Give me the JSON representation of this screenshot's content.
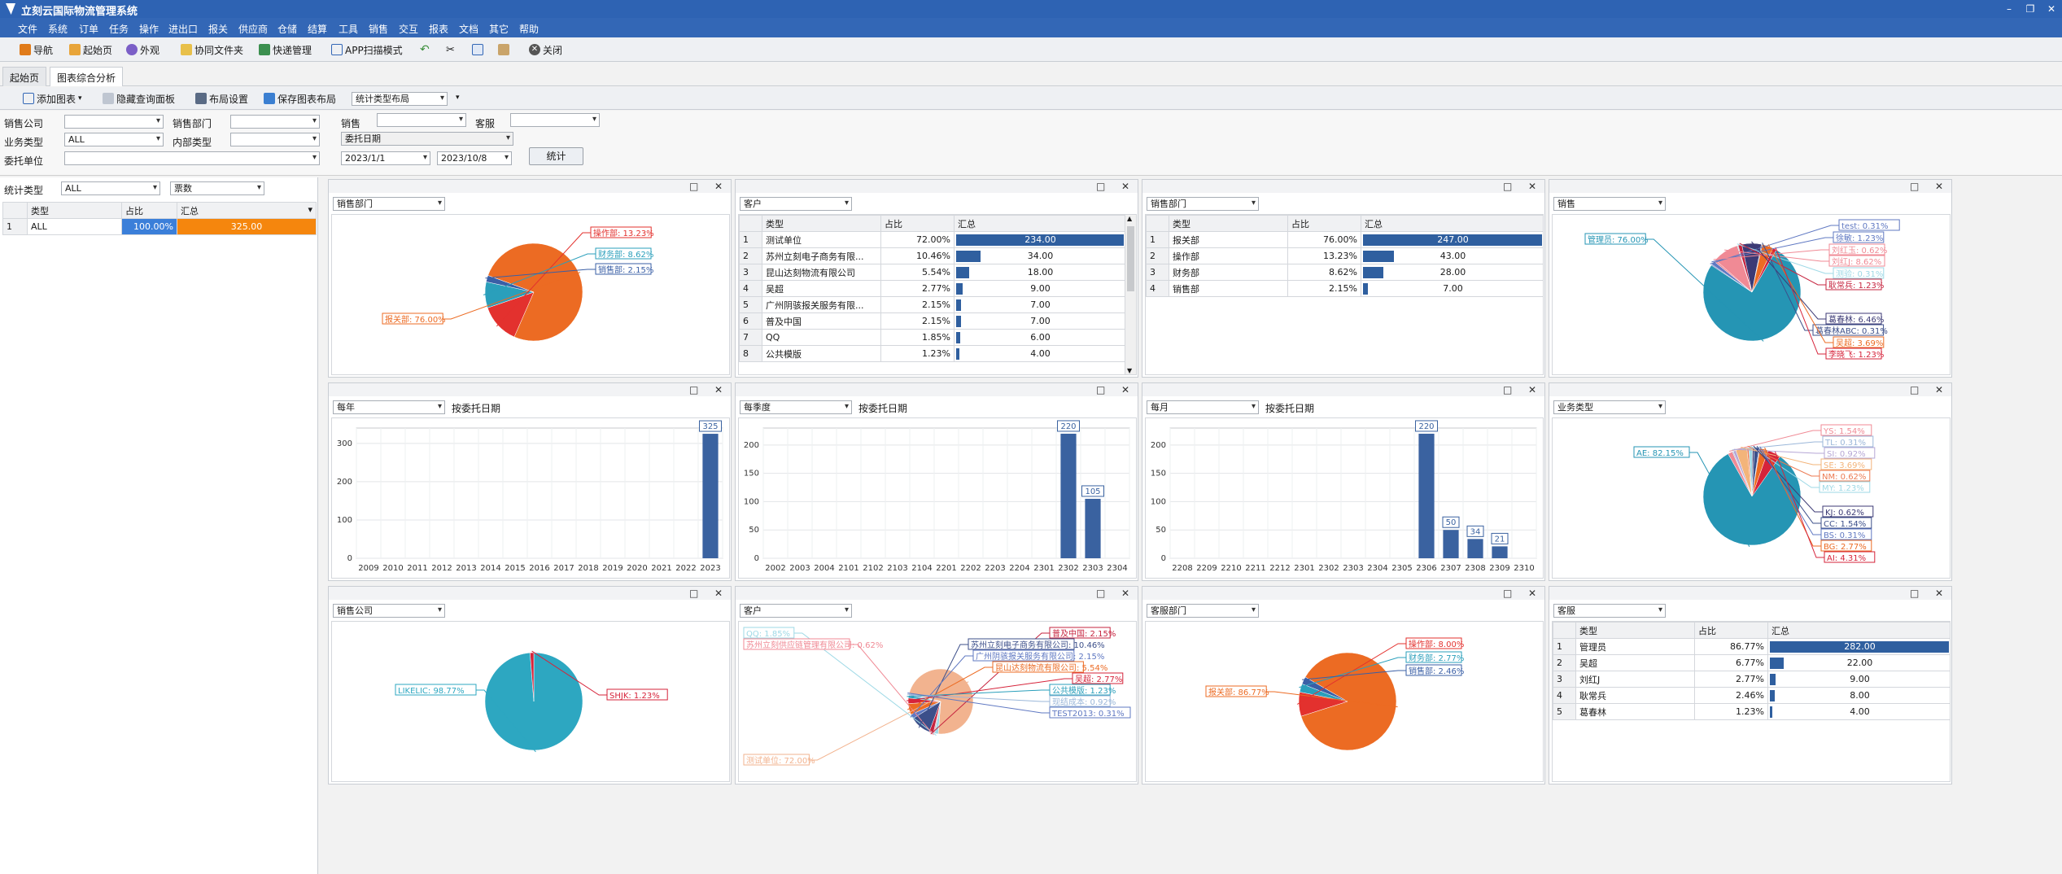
{
  "app": {
    "title": "立刻云国际物流管理系统"
  },
  "menu": [
    "文件",
    "系统",
    "订单",
    "任务",
    "操作",
    "进出口",
    "报关",
    "供应商",
    "仓储",
    "结算",
    "工具",
    "销售",
    "交互",
    "报表",
    "文档",
    "其它",
    "帮助"
  ],
  "toolbar": {
    "nav": "导航",
    "home": "起始页",
    "appearance": "外观",
    "folder": "协同文件夹",
    "express": "快递管理",
    "app_scan": "APP扫描模式",
    "close": "关闭"
  },
  "tabs": [
    "起始页",
    "图表综合分析"
  ],
  "subtoolbar": {
    "add_chart": "添加图表",
    "hide_query": "隐藏查询面板",
    "layout_settings": "布局设置",
    "save_layout": "保存图表布局",
    "layout_type": "统计类型布局"
  },
  "filters": {
    "sales_company_label": "销售公司",
    "sales_company": "",
    "sales_dept_label": "销售部门",
    "sales_dept": "",
    "sales_label": "销售",
    "sales": "",
    "customer_service_label": "客服",
    "customer_service": "",
    "business_type_label": "业务类型",
    "business_type": "ALL",
    "internal_type_label": "内部类型",
    "internal_type": "",
    "date_type": "委托日期",
    "client_unit_label": "委托单位",
    "client_unit": "",
    "date_from": "2023/1/1",
    "date_to": "2023/10/8",
    "stat_button": "统计"
  },
  "left": {
    "stat_type_label": "统计类型",
    "stat_type": "ALL",
    "measure": "票数",
    "columns": [
      "类型",
      "占比",
      "汇总"
    ],
    "rows": [
      {
        "n": "1",
        "type": "ALL",
        "pct": "100.00%",
        "sum": "325.00"
      }
    ]
  },
  "panels": {
    "p1": {
      "selector": "销售部门"
    },
    "p2": {
      "selector": "客户",
      "columns": [
        "类型",
        "占比",
        "汇总"
      ],
      "rows": [
        {
          "n": "1",
          "type": "测试单位",
          "pct": "72.00%",
          "sum": "234.00",
          "v": 234
        },
        {
          "n": "2",
          "type": "苏州立刻电子商务有限...",
          "pct": "10.46%",
          "sum": "34.00",
          "v": 34
        },
        {
          "n": "3",
          "type": "昆山达刻物流有限公司",
          "pct": "5.54%",
          "sum": "18.00",
          "v": 18
        },
        {
          "n": "4",
          "type": "吴超",
          "pct": "2.77%",
          "sum": "9.00",
          "v": 9
        },
        {
          "n": "5",
          "type": "广州阴骇报关服务有限...",
          "pct": "2.15%",
          "sum": "7.00",
          "v": 7
        },
        {
          "n": "6",
          "type": "普及中国",
          "pct": "2.15%",
          "sum": "7.00",
          "v": 7
        },
        {
          "n": "7",
          "type": "QQ",
          "pct": "1.85%",
          "sum": "6.00",
          "v": 6
        },
        {
          "n": "8",
          "type": "公共模版",
          "pct": "1.23%",
          "sum": "4.00",
          "v": 4
        }
      ]
    },
    "p3": {
      "selector": "销售部门",
      "columns": [
        "类型",
        "占比",
        "汇总"
      ],
      "rows": [
        {
          "n": "1",
          "type": "报关部",
          "pct": "76.00%",
          "sum": "247.00",
          "v": 247
        },
        {
          "n": "2",
          "type": "操作部",
          "pct": "13.23%",
          "sum": "43.00",
          "v": 43
        },
        {
          "n": "3",
          "type": "财务部",
          "pct": "8.62%",
          "sum": "28.00",
          "v": 28
        },
        {
          "n": "4",
          "type": "销售部",
          "pct": "2.15%",
          "sum": "7.00",
          "v": 7
        }
      ]
    },
    "p4": {
      "selector": "销售"
    },
    "p5": {
      "selector": "每年",
      "label": "按委托日期"
    },
    "p6": {
      "selector": "每季度",
      "label": "按委托日期"
    },
    "p7": {
      "selector": "每月",
      "label": "按委托日期"
    },
    "p8": {
      "selector": "业务类型"
    },
    "p9": {
      "selector": "销售公司"
    },
    "p10": {
      "selector": "客户"
    },
    "p11": {
      "selector": "客服部门"
    },
    "p12": {
      "selector": "客服",
      "columns": [
        "类型",
        "占比",
        "汇总"
      ],
      "rows": [
        {
          "n": "1",
          "type": "管理员",
          "pct": "86.77%",
          "sum": "282.00",
          "v": 282
        },
        {
          "n": "2",
          "type": "吴超",
          "pct": "6.77%",
          "sum": "22.00",
          "v": 22
        },
        {
          "n": "3",
          "type": "刘红J",
          "pct": "2.77%",
          "sum": "9.00",
          "v": 9
        },
        {
          "n": "4",
          "type": "耿常兵",
          "pct": "2.46%",
          "sum": "8.00",
          "v": 8
        },
        {
          "n": "5",
          "type": "葛春林",
          "pct": "1.23%",
          "sum": "4.00",
          "v": 4
        }
      ]
    }
  },
  "chart_data": [
    {
      "type": "pie",
      "id": "p1",
      "slices": [
        {
          "label": "报关部",
          "value": 76.0
        },
        {
          "label": "操作部",
          "value": 13.23
        },
        {
          "label": "财务部",
          "value": 8.62
        },
        {
          "label": "销售部",
          "value": 2.15
        }
      ]
    },
    {
      "type": "pie",
      "id": "p4",
      "slices": [
        {
          "label": "管理员",
          "value": 76.0
        },
        {
          "label": "test",
          "value": 0.31
        },
        {
          "label": "徐敏",
          "value": 1.23
        },
        {
          "label": "刘红玉",
          "value": 0.62
        },
        {
          "label": "刘红J",
          "value": 8.62
        },
        {
          "label": "测验",
          "value": 0.31
        },
        {
          "label": "耿常兵",
          "value": 1.23
        },
        {
          "label": "葛春林",
          "value": 6.46
        },
        {
          "label": "葛春林ABC",
          "value": 0.31
        },
        {
          "label": "吴超",
          "value": 3.69
        },
        {
          "label": "李晓飞",
          "value": 1.23
        }
      ]
    },
    {
      "type": "bar",
      "id": "p5",
      "categories": [
        "2009",
        "2010",
        "2011",
        "2012",
        "2013",
        "2014",
        "2015",
        "2016",
        "2017",
        "2018",
        "2019",
        "2020",
        "2021",
        "2022",
        "2023"
      ],
      "values": [
        0,
        0,
        0,
        0,
        0,
        0,
        0,
        0,
        0,
        0,
        0,
        0,
        0,
        0,
        325
      ],
      "ylim": [
        0,
        340
      ],
      "yticks": [
        0,
        100,
        200,
        300
      ]
    },
    {
      "type": "bar",
      "id": "p6",
      "categories": [
        "2002",
        "2003",
        "2004",
        "2101",
        "2102",
        "2103",
        "2104",
        "2201",
        "2202",
        "2203",
        "2204",
        "2301",
        "2302",
        "2303",
        "2304"
      ],
      "values": [
        0,
        0,
        0,
        0,
        0,
        0,
        0,
        0,
        0,
        0,
        0,
        0,
        220,
        105,
        0
      ],
      "ylim": [
        0,
        230
      ],
      "yticks": [
        0,
        50,
        100,
        150,
        200
      ]
    },
    {
      "type": "bar",
      "id": "p7",
      "categories": [
        "2208",
        "2209",
        "2210",
        "2211",
        "2212",
        "2301",
        "2302",
        "2303",
        "2304",
        "2305",
        "2306",
        "2307",
        "2308",
        "2309",
        "2310"
      ],
      "values": [
        0,
        0,
        0,
        0,
        0,
        0,
        0,
        0,
        0,
        0,
        220,
        50,
        34,
        21,
        0
      ],
      "ylim": [
        0,
        230
      ],
      "yticks": [
        0,
        50,
        100,
        150,
        200
      ]
    },
    {
      "type": "pie",
      "id": "p8",
      "slices": [
        {
          "label": "AE",
          "value": 82.15
        },
        {
          "label": "YS",
          "value": 1.54
        },
        {
          "label": "TL",
          "value": 0.31
        },
        {
          "label": "SI",
          "value": 0.92
        },
        {
          "label": "SE",
          "value": 3.69
        },
        {
          "label": "NM",
          "value": 0.62
        },
        {
          "label": "MY",
          "value": 1.23
        },
        {
          "label": "KJ",
          "value": 0.62
        },
        {
          "label": "CC",
          "value": 1.54
        },
        {
          "label": "BS",
          "value": 0.31
        },
        {
          "label": "BG",
          "value": 2.77
        },
        {
          "label": "AI",
          "value": 4.31
        }
      ]
    },
    {
      "type": "pie",
      "id": "p9",
      "slices": [
        {
          "label": "LIKELIC",
          "value": 98.77
        },
        {
          "label": "SHJK",
          "value": 1.23
        }
      ]
    },
    {
      "type": "pie",
      "id": "p10",
      "slices": [
        {
          "label": "测试单位",
          "value": 72.0
        },
        {
          "label": "QQ",
          "value": 1.85
        },
        {
          "label": "苏州立刻供应链管理有限公司",
          "value": 0.62
        },
        {
          "label": "普及中国",
          "value": 2.15
        },
        {
          "label": "苏州立刻电子商务有限公司",
          "value": 10.46
        },
        {
          "label": "广州阴骇报关服务有限公司",
          "value": 2.15
        },
        {
          "label": "昆山达刻物流有限公司",
          "value": 5.54
        },
        {
          "label": "吴超",
          "value": 2.77
        },
        {
          "label": "公共模版",
          "value": 1.23
        },
        {
          "label": "现结成本",
          "value": 0.92
        },
        {
          "label": "TEST2013",
          "value": 0.31
        }
      ]
    },
    {
      "type": "pie",
      "id": "p11",
      "slices": [
        {
          "label": "报关部",
          "value": 86.77
        },
        {
          "label": "操作部",
          "value": 8.0
        },
        {
          "label": "财务部",
          "value": 2.77
        },
        {
          "label": "销售部",
          "value": 2.46
        }
      ]
    }
  ]
}
